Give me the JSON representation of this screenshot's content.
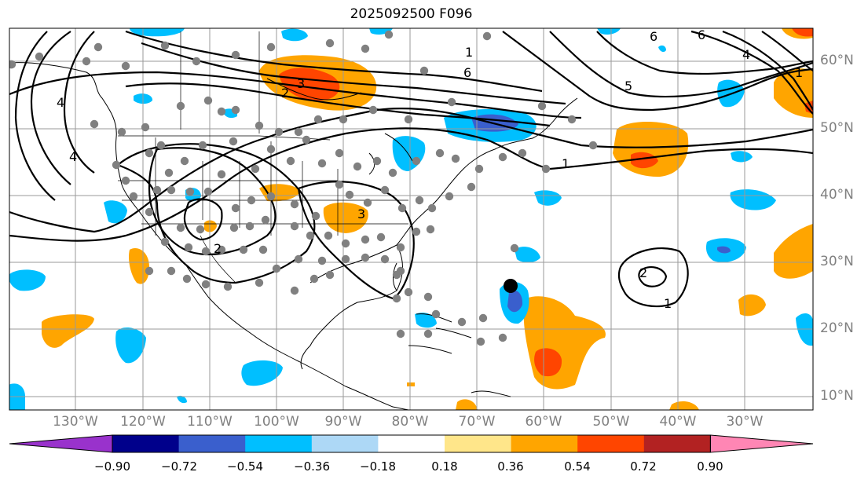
{
  "title": "2025092500 F096",
  "lat_labels": [
    "60°N",
    "50°N",
    "40°N",
    "30°N",
    "20°N",
    "10°N"
  ],
  "lon_labels": [
    "130°W",
    "120°W",
    "110°W",
    "100°W",
    "90°W",
    "80°W",
    "70°W",
    "60°W",
    "50°W",
    "40°W",
    "30°W"
  ],
  "colorbar": {
    "ticks": [
      "−0.90",
      "−0.72",
      "−0.54",
      "−0.36",
      "−0.18",
      "0.18",
      "0.36",
      "0.54",
      "0.72",
      "0.90"
    ],
    "colors": [
      "#9932cc",
      "#00008b",
      "#3a5fcd",
      "#00bfff",
      "#add8f6",
      "#ffffff",
      "#ffe68a",
      "#ffa500",
      "#ff4500",
      "#b22222",
      "#ff86b4"
    ]
  },
  "contour_labels": [
    "6",
    "6",
    "6",
    "5",
    "4",
    "4",
    "4",
    "3",
    "3",
    "2",
    "2",
    "2",
    "1",
    "1",
    "1",
    "1"
  ],
  "storm_marker": {
    "lon": -65,
    "lat": 26.5
  },
  "colors": {
    "positive": "#ffa500",
    "strong_positive": "#ff4500",
    "negative": "#00bfff",
    "strong_negative": "#3a5fcd",
    "station": "#808080"
  }
}
